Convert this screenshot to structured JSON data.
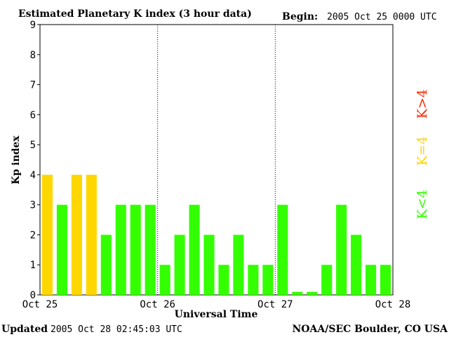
{
  "header": {
    "title": "Estimated Planetary K index (3 hour data)",
    "begin_label": "Begin:",
    "begin_value": "2005 Oct 25 0000 UTC"
  },
  "footer": {
    "updated_label": "Updated",
    "updated_value": "2005 Oct 28 02:45:03 UTC",
    "source": "NOAA/SEC Boulder, CO USA"
  },
  "legend": [
    {
      "label": "K>4",
      "color": "#ff2a00"
    },
    {
      "label": "K=4",
      "color": "#ffd700"
    },
    {
      "label": "K<4",
      "color": "#33ff00"
    }
  ],
  "chart_data": {
    "type": "bar",
    "xlabel": "Universal Time",
    "ylabel": "Kp index",
    "ylim": [
      0,
      9
    ],
    "yticks": [
      "0",
      "1",
      "2",
      "3",
      "4",
      "5",
      "6",
      "7",
      "8",
      "9"
    ],
    "xticks": [
      "Oct 25",
      "Oct 26",
      "Oct 27",
      "Oct 28"
    ],
    "day_dividers": "dotted vertical lines at Oct 26 and Oct 27",
    "bins_per_day": 8,
    "values": [
      4,
      3,
      4,
      4,
      2,
      3,
      3,
      3,
      1,
      2,
      3,
      2,
      1,
      2,
      1,
      1,
      3,
      0.1,
      0.1,
      1,
      3,
      2,
      1,
      1
    ],
    "color_rule": {
      "below4": "#33ff00",
      "equal4": "#ffd700",
      "above4": "#ff2a00"
    }
  }
}
